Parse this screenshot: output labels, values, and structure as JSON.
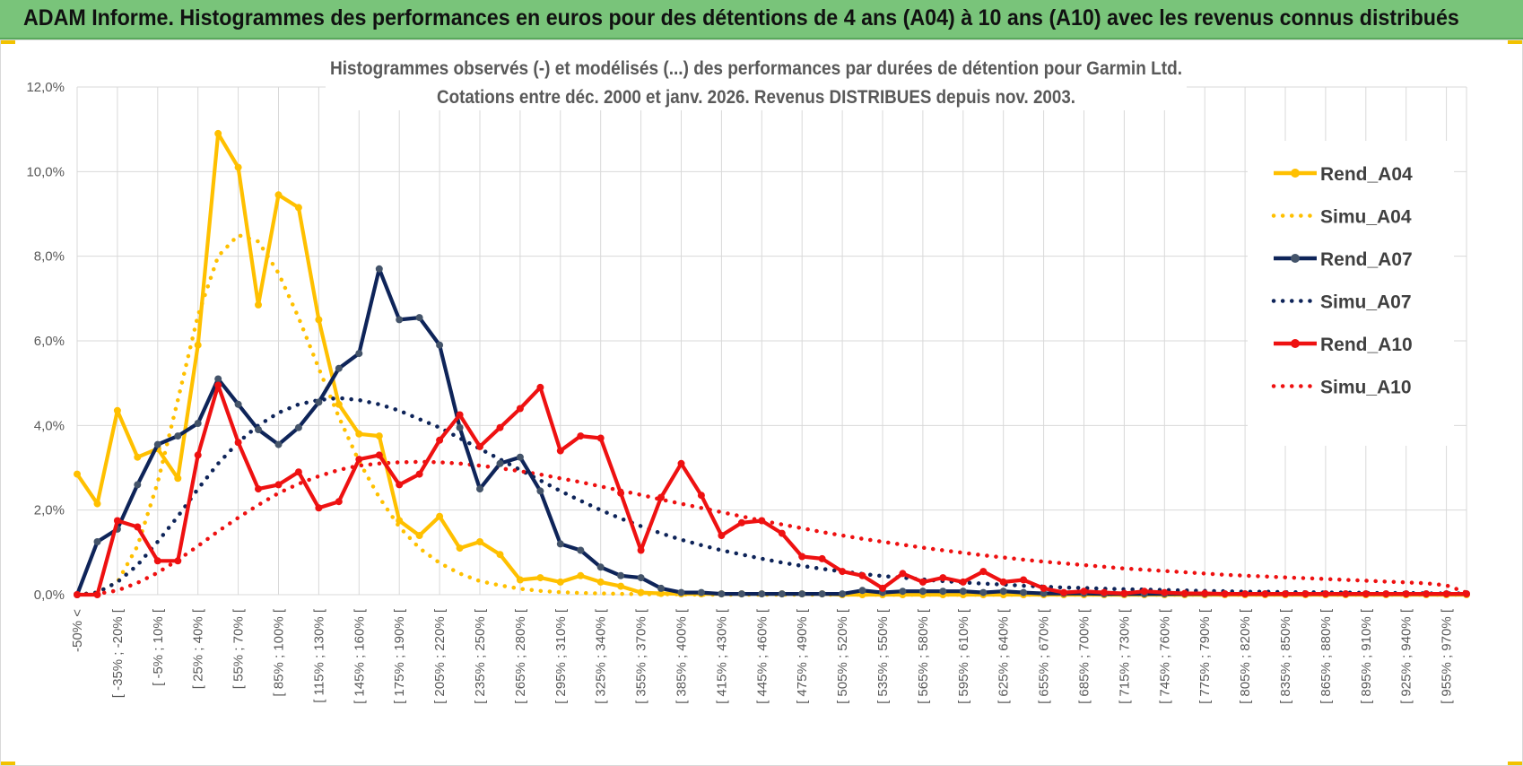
{
  "header": {
    "title": "ADAM Informe. Histogrammes des performances en euros pour des détentions de 4 ans (A04) à 10 ans (A10) avec les revenus connus distribués"
  },
  "colors": {
    "header_bg": "#79c47a",
    "A04": "#ffc000",
    "A07": "#0e2459",
    "A10": "#ee1111",
    "marker_A07": "#44546a",
    "grid": "#d9d9d9"
  },
  "chart_data": {
    "type": "line",
    "title": "Histogrammes observés (-) et modélisés (...) des performances par durées de détention pour Garmin Ltd.",
    "subtitle": "Cotations entre déc. 2000 et janv. 2026. Revenus DISTRIBUES depuis nov. 2003.",
    "ylim": [
      0,
      12
    ],
    "yticks": [
      "0,0%",
      "2,0%",
      "4,0%",
      "6,0%",
      "8,0%",
      "10,0%",
      "12,0%"
    ],
    "xtick_labels": [
      "-50% <",
      "[ -35% ; -20% [",
      "[ -5% ; 10% [",
      "[ 25% ; 40% [",
      "[ 55% ; 70% [",
      "[ 85% ; 100% [",
      "[ 115% ; 130% [",
      "[ 145% ; 160% [",
      "[ 175% ; 190% [",
      "[ 205% ; 220% [",
      "[ 235% ; 250% [",
      "[ 265% ; 280% [",
      "[ 295% ; 310% [",
      "[ 325% ; 340% [",
      "[ 355% ; 370% [",
      "[ 385% ; 400% [",
      "[ 415% ; 430% [",
      "[ 445% ; 460% [",
      "[ 475% ; 490% [",
      "[ 505% ; 520% [",
      "[ 535% ; 550% [",
      "[ 565% ; 580% [",
      "[ 595% ; 610% [",
      "[ 625% ; 640% [",
      "[ 655% ; 670% [",
      "[ 685% ; 700% [",
      "[ 715% ; 730% [",
      "[ 745% ; 760% [",
      "[ 775% ; 790% [",
      "[ 805% ; 820% [",
      "[ 835% ; 850% [",
      "[ 865% ; 880% [",
      "[ 895% ; 910% [",
      "[ 925% ; 940% [",
      "[ 955% ; 970% ["
    ],
    "n_points": 70,
    "legend_position": "right",
    "series": [
      {
        "name": "Rend_A04",
        "style": "solid",
        "color": "#ffc000",
        "values": [
          2.85,
          2.15,
          4.35,
          3.25,
          3.45,
          2.75,
          5.9,
          10.9,
          10.1,
          6.85,
          9.45,
          9.15,
          6.5,
          4.5,
          3.8,
          3.75,
          1.75,
          1.4,
          1.85,
          1.1,
          1.25,
          0.95,
          0.35,
          0.4,
          0.3,
          0.45,
          0.3,
          0.2,
          0.05,
          0.03,
          0.02,
          0.02,
          0.02,
          0.02,
          0.02,
          0.02,
          0.02,
          0.02,
          0,
          0,
          0,
          0,
          0,
          0,
          0,
          0,
          0,
          0,
          0,
          0,
          0,
          0,
          0,
          0,
          0,
          0,
          0,
          0,
          0,
          0,
          0,
          0,
          0,
          0,
          0,
          0,
          0,
          0,
          0,
          0
        ]
      },
      {
        "name": "Simu_A04",
        "style": "dotted",
        "color": "#ffc000",
        "values": [
          0.0,
          0.05,
          0.3,
          1.15,
          2.65,
          4.6,
          6.6,
          8.0,
          8.5,
          8.35,
          7.6,
          6.55,
          5.35,
          4.2,
          3.15,
          2.3,
          1.6,
          1.1,
          0.75,
          0.5,
          0.32,
          0.22,
          0.14,
          0.09,
          0.06,
          0.04,
          0.03,
          0.02,
          0.01,
          0.01,
          0.01,
          0,
          0,
          0,
          0,
          0,
          0,
          0,
          0,
          0,
          0,
          0,
          0,
          0,
          0,
          0,
          0,
          0,
          0,
          0,
          0,
          0,
          0,
          0,
          0,
          0,
          0,
          0,
          0,
          0,
          0,
          0,
          0,
          0,
          0,
          0,
          0,
          0,
          0,
          0
        ]
      },
      {
        "name": "Rend_A07",
        "style": "solid",
        "color": "#0e2459",
        "values": [
          0.0,
          1.25,
          1.55,
          2.6,
          3.55,
          3.75,
          4.05,
          5.1,
          4.5,
          3.9,
          3.55,
          3.95,
          4.55,
          5.35,
          5.7,
          7.7,
          6.5,
          6.55,
          5.9,
          3.95,
          2.5,
          3.1,
          3.25,
          2.45,
          1.2,
          1.05,
          0.65,
          0.45,
          0.4,
          0.15,
          0.05,
          0.05,
          0.02,
          0.02,
          0.02,
          0.02,
          0.02,
          0.02,
          0.02,
          0.1,
          0.05,
          0.08,
          0.08,
          0.08,
          0.08,
          0.05,
          0.08,
          0.05,
          0.03,
          0.03,
          0.03,
          0.02,
          0.02,
          0.02,
          0.02,
          0.02,
          0.02,
          0.02,
          0.02,
          0.02,
          0.02,
          0.02,
          0.02,
          0.02,
          0.02,
          0.02,
          0.02,
          0.02,
          0.02,
          0.02
        ]
      },
      {
        "name": "Simu_A07",
        "style": "dotted",
        "color": "#0e2459",
        "values": [
          0.0,
          0.05,
          0.3,
          0.7,
          1.25,
          1.85,
          2.5,
          3.1,
          3.6,
          4.0,
          4.3,
          4.5,
          4.6,
          4.65,
          4.6,
          4.5,
          4.35,
          4.15,
          3.95,
          3.7,
          3.45,
          3.2,
          2.95,
          2.7,
          2.45,
          2.22,
          2.0,
          1.8,
          1.62,
          1.45,
          1.3,
          1.17,
          1.05,
          0.95,
          0.85,
          0.76,
          0.68,
          0.61,
          0.55,
          0.49,
          0.44,
          0.4,
          0.36,
          0.32,
          0.29,
          0.26,
          0.24,
          0.21,
          0.19,
          0.17,
          0.16,
          0.14,
          0.13,
          0.12,
          0.11,
          0.1,
          0.09,
          0.08,
          0.07,
          0.07,
          0.06,
          0.06,
          0.05,
          0.05,
          0.04,
          0.04,
          0.04,
          0.03,
          0.03,
          0.03
        ]
      },
      {
        "name": "Rend_A10",
        "style": "solid",
        "color": "#ee1111",
        "values": [
          0.0,
          0.0,
          1.75,
          1.6,
          0.8,
          0.8,
          3.3,
          4.95,
          3.6,
          2.5,
          2.6,
          2.9,
          2.05,
          2.2,
          3.2,
          3.3,
          2.6,
          2.85,
          3.65,
          4.25,
          3.5,
          3.95,
          4.4,
          4.9,
          3.4,
          3.75,
          3.7,
          2.4,
          1.05,
          2.3,
          3.1,
          2.35,
          1.4,
          1.7,
          1.75,
          1.45,
          0.9,
          0.85,
          0.55,
          0.45,
          0.15,
          0.5,
          0.3,
          0.4,
          0.3,
          0.55,
          0.3,
          0.35,
          0.15,
          0.05,
          0.08,
          0.05,
          0.03,
          0.08,
          0.05,
          0.03,
          0.03,
          0.02,
          0.02,
          0.02,
          0.02,
          0.02,
          0.02,
          0.02,
          0.02,
          0.02,
          0.02,
          0.02,
          0.02,
          0.02
        ]
      },
      {
        "name": "Simu_A10",
        "style": "dotted",
        "color": "#ee1111",
        "values": [
          0.0,
          0.02,
          0.1,
          0.28,
          0.52,
          0.82,
          1.15,
          1.5,
          1.82,
          2.12,
          2.4,
          2.62,
          2.8,
          2.95,
          3.05,
          3.1,
          3.13,
          3.14,
          3.13,
          3.1,
          3.05,
          2.99,
          2.92,
          2.84,
          2.75,
          2.66,
          2.56,
          2.46,
          2.36,
          2.25,
          2.15,
          2.05,
          1.95,
          1.85,
          1.75,
          1.66,
          1.57,
          1.48,
          1.4,
          1.32,
          1.25,
          1.18,
          1.11,
          1.05,
          0.99,
          0.93,
          0.88,
          0.83,
          0.78,
          0.74,
          0.7,
          0.66,
          0.62,
          0.59,
          0.56,
          0.53,
          0.5,
          0.47,
          0.45,
          0.43,
          0.41,
          0.39,
          0.37,
          0.35,
          0.33,
          0.31,
          0.29,
          0.27,
          0.22,
          0.05
        ]
      }
    ]
  }
}
